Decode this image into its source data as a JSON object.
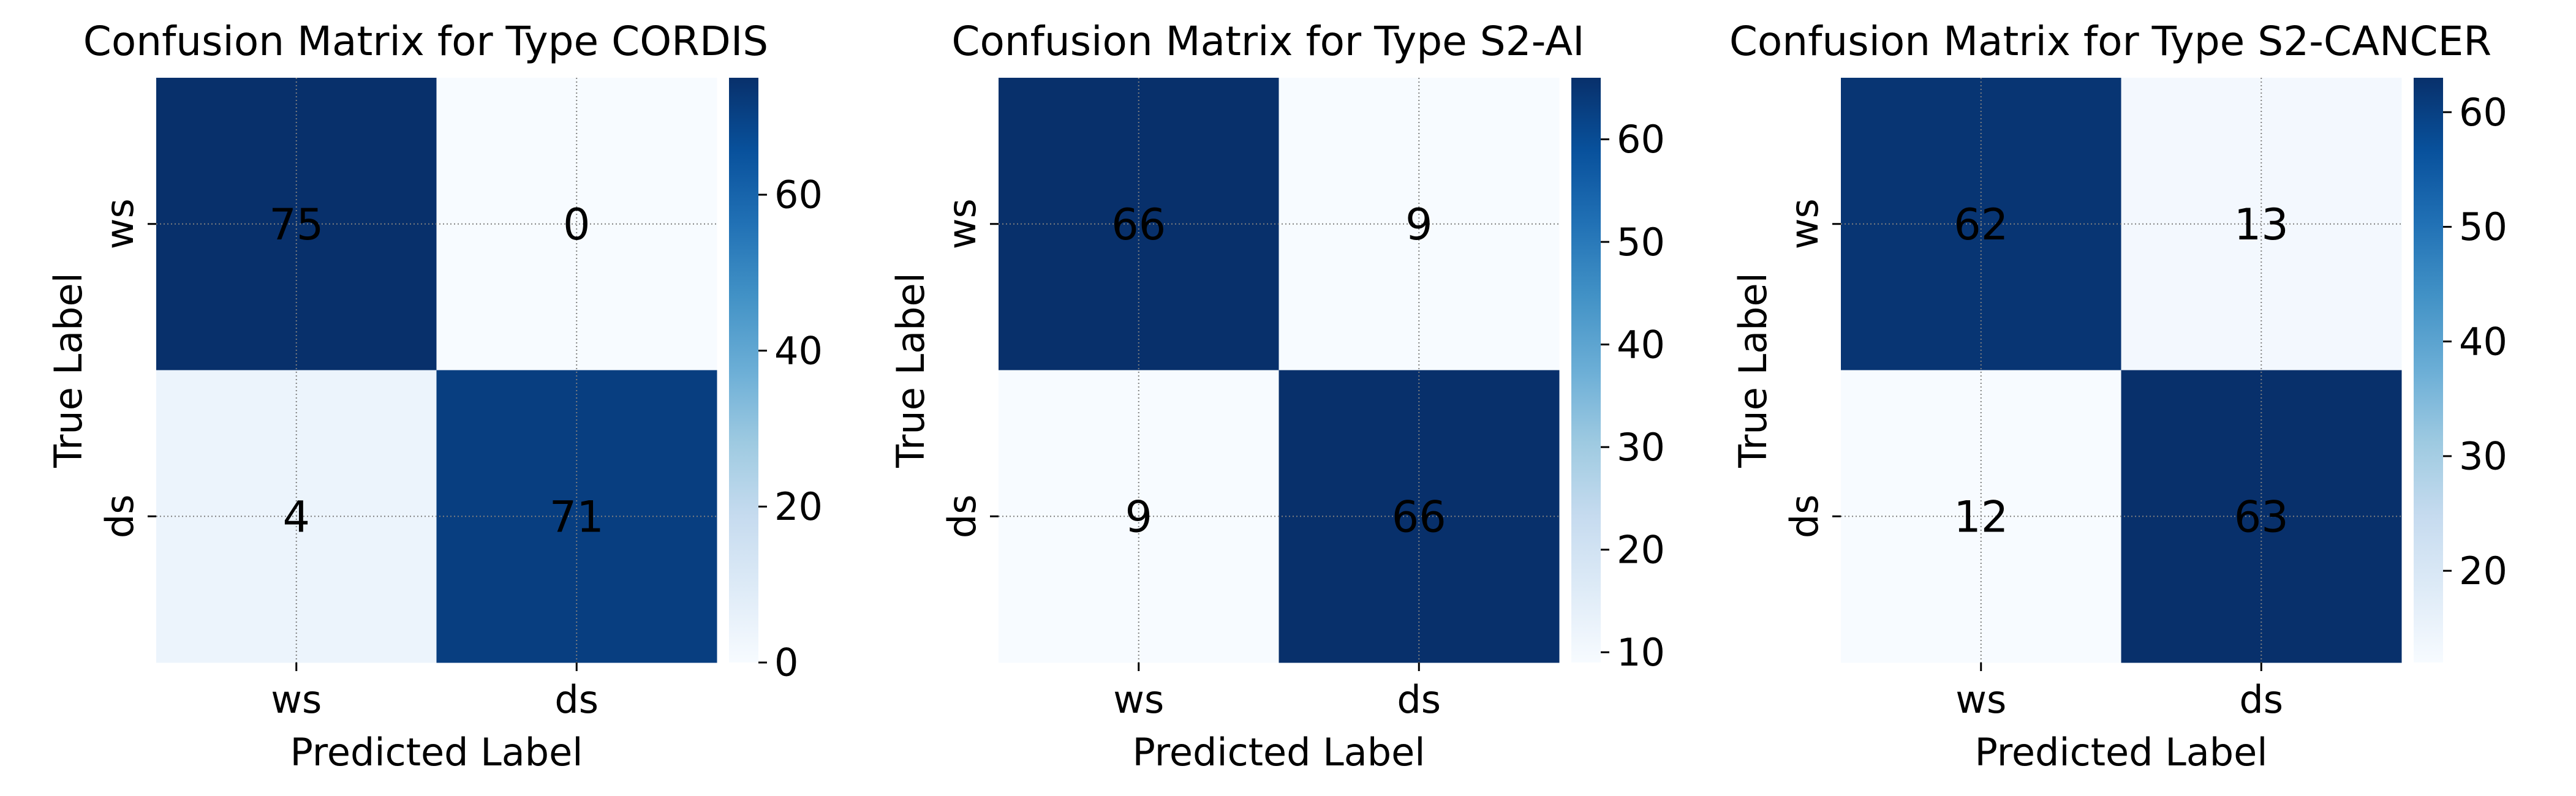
{
  "chart_data": [
    {
      "type": "heatmap",
      "title": "Confusion Matrix for Type CORDIS",
      "xlabel": "Predicted Label",
      "ylabel": "True Label",
      "x_categories": [
        "ws",
        "ds"
      ],
      "y_categories": [
        "ws",
        "ds"
      ],
      "values": [
        [
          75,
          0
        ],
        [
          4,
          71
        ]
      ],
      "colorbar": {
        "vmin": 0,
        "vmax": 75,
        "ticks": [
          0,
          20,
          40,
          60
        ]
      },
      "colormap": "Blues",
      "grid": true
    },
    {
      "type": "heatmap",
      "title": "Confusion Matrix for Type S2-AI",
      "xlabel": "Predicted Label",
      "ylabel": "True Label",
      "x_categories": [
        "ws",
        "ds"
      ],
      "y_categories": [
        "ws",
        "ds"
      ],
      "values": [
        [
          66,
          9
        ],
        [
          9,
          66
        ]
      ],
      "colorbar": {
        "vmin": 9,
        "vmax": 66,
        "ticks": [
          10,
          20,
          30,
          40,
          50,
          60
        ]
      },
      "colormap": "Blues",
      "grid": true
    },
    {
      "type": "heatmap",
      "title": "Confusion Matrix for Type S2-CANCER",
      "xlabel": "Predicted Label",
      "ylabel": "True Label",
      "x_categories": [
        "ws",
        "ds"
      ],
      "y_categories": [
        "ws",
        "ds"
      ],
      "values": [
        [
          62,
          13
        ],
        [
          12,
          63
        ]
      ],
      "colorbar": {
        "vmin": 12,
        "vmax": 63,
        "ticks": [
          20,
          30,
          40,
          50,
          60
        ]
      },
      "colormap": "Blues",
      "grid": true
    }
  ],
  "colors": {
    "blues_low": "#f7fbff",
    "blues_high": "#08306b",
    "text_dark": "#000000",
    "text_light": "#ffffff",
    "grid": "#7f7f7f"
  }
}
